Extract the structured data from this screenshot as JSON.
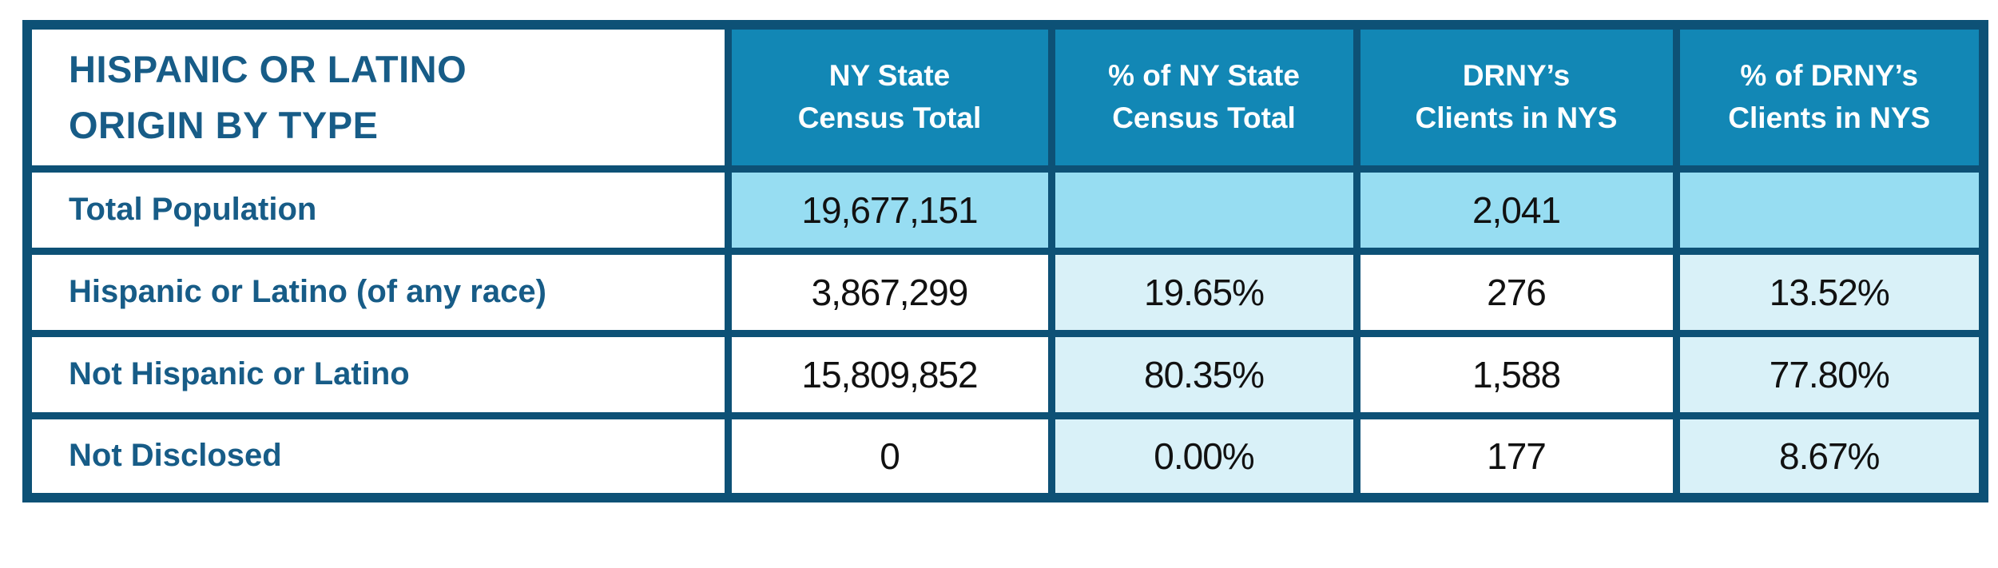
{
  "table": {
    "title_line1": "HISPANIC OR LATINO",
    "title_line2": "ORIGIN BY TYPE",
    "columns": [
      {
        "line1": "NY State",
        "line2": "Census Total"
      },
      {
        "line1": "% of NY State",
        "line2": "Census Total"
      },
      {
        "line1": "DRNY’s",
        "line2": "Clients in NYS"
      },
      {
        "line1": "% of DRNY’s",
        "line2": "Clients in NYS"
      }
    ],
    "rows": [
      {
        "label": "Total Population",
        "census_total": "19,677,151",
        "census_pct": "",
        "drny_clients": "2,041",
        "drny_pct": ""
      },
      {
        "label": "Hispanic or Latino (of any race)",
        "census_total": "3,867,299",
        "census_pct": "19.65%",
        "drny_clients": "276",
        "drny_pct": "13.52%"
      },
      {
        "label": "Not Hispanic or Latino",
        "census_total": "15,809,852",
        "census_pct": "80.35%",
        "drny_clients": "1,588",
        "drny_pct": "77.80%"
      },
      {
        "label": "Not Disclosed",
        "census_total": "0",
        "census_pct": "0.00%",
        "drny_clients": "177",
        "drny_pct": "8.67%"
      }
    ]
  },
  "colors": {
    "border": "#0d5176",
    "header_bg": "#1287b5",
    "header_text": "#ffffff",
    "title_text": "#175c87",
    "row_highlight": "#97ddf2",
    "pct_cell_bg": "#d9f1f8",
    "number_text": "#111111",
    "page_bg": "#ffffff"
  },
  "chart_data": {
    "type": "table",
    "title": "HISPANIC OR LATINO ORIGIN BY TYPE",
    "columns": [
      "NY State Census Total",
      "% of NY State Census Total",
      "DRNY’s Clients in NYS",
      "% of DRNY’s Clients in NYS"
    ],
    "rows": [
      {
        "category": "Total Population",
        "ny_state_census_total": 19677151,
        "pct_of_ny_state_census_total": null,
        "drnys_clients_in_nys": 2041,
        "pct_of_drnys_clients_in_nys": null
      },
      {
        "category": "Hispanic or Latino (of any race)",
        "ny_state_census_total": 3867299,
        "pct_of_ny_state_census_total": 19.65,
        "drnys_clients_in_nys": 276,
        "pct_of_drnys_clients_in_nys": 13.52
      },
      {
        "category": "Not Hispanic or Latino",
        "ny_state_census_total": 15809852,
        "pct_of_ny_state_census_total": 80.35,
        "drnys_clients_in_nys": 1588,
        "pct_of_drnys_clients_in_nys": 77.8
      },
      {
        "category": "Not Disclosed",
        "ny_state_census_total": 0,
        "pct_of_ny_state_census_total": 0.0,
        "drnys_clients_in_nys": 177,
        "pct_of_drnys_clients_in_nys": 8.67
      }
    ],
    "notes": "Highlighted row: Total Population (all cells light blue). Percentage columns shaded pale blue in remaining rows."
  }
}
